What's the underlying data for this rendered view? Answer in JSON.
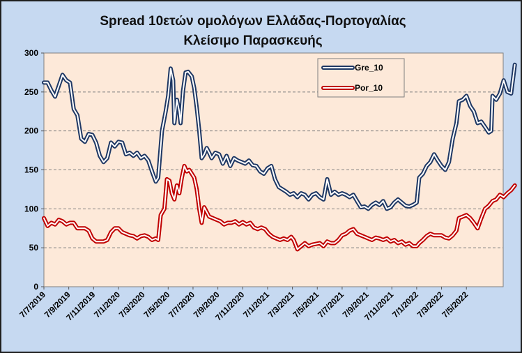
{
  "chart_data": {
    "type": "line",
    "title": "Spread 10ετών ομολόγων Ελλάδας-Πορτογαλίας",
    "subtitle": "Κλείσιμο Παρασκευής",
    "ylim": [
      0,
      300
    ],
    "yticks": [
      0,
      50,
      100,
      150,
      200,
      250,
      300
    ],
    "xticks": [
      "7/7/2019",
      "7/9/2019",
      "7/11/2019",
      "7/1/2020",
      "7/3/2020",
      "7/5/2020",
      "7/7/2020",
      "7/9/2020",
      "7/11/2020",
      "7/1/2021",
      "7/3/2021",
      "7/5/2021",
      "7/7/2021",
      "7/9/2021",
      "7/11/2021",
      "7/1/2022",
      "7/3/2022",
      "7/5/2022"
    ],
    "grid": true,
    "legend_position": "top-right",
    "x_index_range": [
      0,
      18.2
    ],
    "series": [
      {
        "name": "Gre_10",
        "color": "#1f3864",
        "points": [
          [
            0,
            262
          ],
          [
            0.15,
            262
          ],
          [
            0.3,
            252
          ],
          [
            0.45,
            244
          ],
          [
            0.6,
            258
          ],
          [
            0.75,
            272
          ],
          [
            0.9,
            265
          ],
          [
            1.05,
            262
          ],
          [
            1.2,
            228
          ],
          [
            1.35,
            220
          ],
          [
            1.5,
            190
          ],
          [
            1.65,
            186
          ],
          [
            1.8,
            196
          ],
          [
            1.95,
            195
          ],
          [
            2.1,
            185
          ],
          [
            2.25,
            168
          ],
          [
            2.4,
            160
          ],
          [
            2.55,
            165
          ],
          [
            2.7,
            185
          ],
          [
            2.85,
            180
          ],
          [
            3,
            186
          ],
          [
            3.15,
            185
          ],
          [
            3.3,
            170
          ],
          [
            3.45,
            172
          ],
          [
            3.6,
            168
          ],
          [
            3.75,
            172
          ],
          [
            3.9,
            165
          ],
          [
            4.05,
            168
          ],
          [
            4.2,
            162
          ],
          [
            4.35,
            148
          ],
          [
            4.5,
            135
          ],
          [
            4.6,
            140
          ],
          [
            4.75,
            200
          ],
          [
            4.9,
            225
          ],
          [
            5,
            245
          ],
          [
            5.1,
            280
          ],
          [
            5.2,
            265
          ],
          [
            5.25,
            210
          ],
          [
            5.35,
            240
          ],
          [
            5.45,
            225
          ],
          [
            5.5,
            210
          ],
          [
            5.6,
            252
          ],
          [
            5.7,
            275
          ],
          [
            5.8,
            276
          ],
          [
            5.95,
            270
          ],
          [
            6.05,
            255
          ],
          [
            6.15,
            230
          ],
          [
            6.25,
            200
          ],
          [
            6.35,
            165
          ],
          [
            6.45,
            170
          ],
          [
            6.55,
            178
          ],
          [
            6.65,
            172
          ],
          [
            6.75,
            165
          ],
          [
            6.9,
            172
          ],
          [
            7.05,
            170
          ],
          [
            7.2,
            158
          ],
          [
            7.35,
            168
          ],
          [
            7.5,
            155
          ],
          [
            7.65,
            165
          ],
          [
            7.8,
            162
          ],
          [
            7.95,
            160
          ],
          [
            8.1,
            158
          ],
          [
            8.25,
            162
          ],
          [
            8.4,
            156
          ],
          [
            8.55,
            155
          ],
          [
            8.7,
            148
          ],
          [
            8.85,
            145
          ],
          [
            9,
            152
          ],
          [
            9.15,
            155
          ],
          [
            9.3,
            138
          ],
          [
            9.45,
            128
          ],
          [
            9.6,
            125
          ],
          [
            9.75,
            122
          ],
          [
            9.9,
            118
          ],
          [
            10.05,
            120
          ],
          [
            10.2,
            115
          ],
          [
            10.35,
            120
          ],
          [
            10.5,
            118
          ],
          [
            10.65,
            112
          ],
          [
            10.8,
            118
          ],
          [
            10.95,
            120
          ],
          [
            11.1,
            115
          ],
          [
            11.25,
            112
          ],
          [
            11.4,
            138
          ],
          [
            11.55,
            118
          ],
          [
            11.7,
            122
          ],
          [
            11.85,
            118
          ],
          [
            12,
            120
          ],
          [
            12.15,
            118
          ],
          [
            12.3,
            115
          ],
          [
            12.45,
            118
          ],
          [
            12.6,
            110
          ],
          [
            12.75,
            102
          ],
          [
            12.9,
            103
          ],
          [
            13.05,
            100
          ],
          [
            13.2,
            105
          ],
          [
            13.35,
            108
          ],
          [
            13.5,
            105
          ],
          [
            13.65,
            110
          ],
          [
            13.8,
            100
          ],
          [
            13.95,
            102
          ],
          [
            14.1,
            108
          ],
          [
            14.25,
            112
          ],
          [
            14.4,
            108
          ],
          [
            14.55,
            104
          ],
          [
            14.7,
            103
          ],
          [
            14.85,
            105
          ],
          [
            15,
            108
          ],
          [
            15.1,
            140
          ],
          [
            15.25,
            145
          ],
          [
            15.4,
            155
          ],
          [
            15.55,
            160
          ],
          [
            15.7,
            170
          ],
          [
            15.85,
            162
          ],
          [
            16,
            155
          ],
          [
            16.15,
            150
          ],
          [
            16.3,
            160
          ],
          [
            16.45,
            190
          ],
          [
            16.6,
            210
          ],
          [
            16.7,
            238
          ],
          [
            16.85,
            240
          ],
          [
            17,
            245
          ],
          [
            17.15,
            232
          ],
          [
            17.3,
            225
          ],
          [
            17.45,
            210
          ],
          [
            17.6,
            212
          ],
          [
            17.75,
            205
          ],
          [
            17.9,
            198
          ],
          [
            18,
            200
          ],
          [
            18.05,
            245
          ],
          [
            18.2,
            240
          ],
          [
            18.35,
            248
          ],
          [
            18.5,
            265
          ],
          [
            18.65,
            250
          ],
          [
            18.8,
            248
          ],
          [
            18.95,
            285
          ]
        ]
      },
      {
        "name": "Por_10",
        "color": "#c00000",
        "points": [
          [
            0,
            88
          ],
          [
            0.15,
            78
          ],
          [
            0.3,
            82
          ],
          [
            0.45,
            80
          ],
          [
            0.6,
            86
          ],
          [
            0.75,
            84
          ],
          [
            0.9,
            80
          ],
          [
            1.05,
            82
          ],
          [
            1.2,
            82
          ],
          [
            1.35,
            75
          ],
          [
            1.5,
            75
          ],
          [
            1.65,
            75
          ],
          [
            1.8,
            72
          ],
          [
            1.95,
            62
          ],
          [
            2.1,
            58
          ],
          [
            2.25,
            58
          ],
          [
            2.4,
            58
          ],
          [
            2.55,
            60
          ],
          [
            2.7,
            70
          ],
          [
            2.85,
            75
          ],
          [
            3,
            75
          ],
          [
            3.15,
            70
          ],
          [
            3.3,
            68
          ],
          [
            3.45,
            66
          ],
          [
            3.6,
            65
          ],
          [
            3.75,
            62
          ],
          [
            3.9,
            65
          ],
          [
            4.05,
            66
          ],
          [
            4.2,
            64
          ],
          [
            4.35,
            60
          ],
          [
            4.5,
            62
          ],
          [
            4.6,
            60
          ],
          [
            4.7,
            92
          ],
          [
            4.85,
            100
          ],
          [
            4.95,
            138
          ],
          [
            5.05,
            136
          ],
          [
            5.15,
            120
          ],
          [
            5.25,
            112
          ],
          [
            5.35,
            130
          ],
          [
            5.45,
            120
          ],
          [
            5.55,
            140
          ],
          [
            5.65,
            155
          ],
          [
            5.75,
            148
          ],
          [
            5.85,
            150
          ],
          [
            5.95,
            145
          ],
          [
            6.05,
            140
          ],
          [
            6.15,
            125
          ],
          [
            6.25,
            100
          ],
          [
            6.35,
            82
          ],
          [
            6.45,
            102
          ],
          [
            6.55,
            96
          ],
          [
            6.65,
            90
          ],
          [
            6.8,
            88
          ],
          [
            6.95,
            86
          ],
          [
            7.1,
            84
          ],
          [
            7.25,
            80
          ],
          [
            7.4,
            82
          ],
          [
            7.55,
            82
          ],
          [
            7.7,
            84
          ],
          [
            7.85,
            80
          ],
          [
            8,
            83
          ],
          [
            8.15,
            80
          ],
          [
            8.3,
            82
          ],
          [
            8.45,
            76
          ],
          [
            8.6,
            74
          ],
          [
            8.75,
            76
          ],
          [
            8.9,
            74
          ],
          [
            9.05,
            68
          ],
          [
            9.2,
            64
          ],
          [
            9.35,
            62
          ],
          [
            9.5,
            60
          ],
          [
            9.65,
            62
          ],
          [
            9.8,
            60
          ],
          [
            9.95,
            64
          ],
          [
            10.05,
            60
          ],
          [
            10.2,
            48
          ],
          [
            10.35,
            52
          ],
          [
            10.5,
            56
          ],
          [
            10.65,
            52
          ],
          [
            10.8,
            54
          ],
          [
            10.95,
            55
          ],
          [
            11.1,
            56
          ],
          [
            11.25,
            52
          ],
          [
            11.4,
            58
          ],
          [
            11.55,
            56
          ],
          [
            11.7,
            56
          ],
          [
            11.85,
            60
          ],
          [
            12,
            66
          ],
          [
            12.15,
            68
          ],
          [
            12.3,
            72
          ],
          [
            12.45,
            74
          ],
          [
            12.6,
            68
          ],
          [
            12.75,
            66
          ],
          [
            12.9,
            64
          ],
          [
            13.05,
            62
          ],
          [
            13.2,
            60
          ],
          [
            13.35,
            63
          ],
          [
            13.5,
            62
          ],
          [
            13.65,
            60
          ],
          [
            13.8,
            62
          ],
          [
            13.95,
            58
          ],
          [
            14.1,
            60
          ],
          [
            14.25,
            56
          ],
          [
            14.4,
            58
          ],
          [
            14.55,
            54
          ],
          [
            14.7,
            56
          ],
          [
            14.85,
            52
          ],
          [
            15,
            52
          ],
          [
            15.1,
            56
          ],
          [
            15.25,
            60
          ],
          [
            15.4,
            65
          ],
          [
            15.55,
            68
          ],
          [
            15.7,
            66
          ],
          [
            15.85,
            66
          ],
          [
            16,
            66
          ],
          [
            16.15,
            63
          ],
          [
            16.3,
            62
          ],
          [
            16.45,
            66
          ],
          [
            16.6,
            72
          ],
          [
            16.7,
            88
          ],
          [
            16.85,
            90
          ],
          [
            17,
            92
          ],
          [
            17.15,
            88
          ],
          [
            17.3,
            82
          ],
          [
            17.45,
            75
          ],
          [
            17.6,
            88
          ],
          [
            17.75,
            100
          ],
          [
            17.9,
            104
          ],
          [
            18.05,
            110
          ],
          [
            18.2,
            112
          ],
          [
            18.35,
            118
          ],
          [
            18.5,
            115
          ],
          [
            18.65,
            120
          ],
          [
            18.8,
            124
          ],
          [
            18.95,
            130
          ]
        ]
      }
    ]
  }
}
